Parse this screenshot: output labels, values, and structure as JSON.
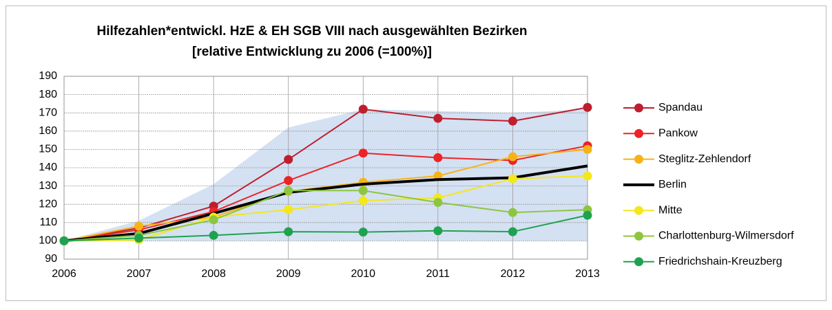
{
  "chart_data": {
    "type": "line",
    "title": [
      "Hilfezahlen*entwickl. HzE & EH SGB VIII nach ausgewählten Bezirken",
      "[relative Entwicklung zu 2006 (=100%)]"
    ],
    "categories": [
      "2006",
      "2007",
      "2008",
      "2009",
      "2010",
      "2011",
      "2012",
      "2013"
    ],
    "ylim": [
      90,
      190
    ],
    "yticks": [
      90,
      100,
      110,
      120,
      130,
      140,
      150,
      160,
      170,
      180,
      190
    ],
    "grid": true,
    "legend": "right",
    "range": {
      "color": "#c6d7ee",
      "upper": [
        100,
        111,
        131,
        162,
        172,
        171,
        170,
        172
      ],
      "lower": [
        100,
        100,
        100,
        100,
        100,
        100,
        100,
        100
      ]
    },
    "series": [
      {
        "name": "Spandau",
        "color": "#be1e2d",
        "values": [
          100,
          107,
          119,
          144.5,
          172,
          167,
          165.5,
          173
        ]
      },
      {
        "name": "Pankow",
        "color": "#ec2327",
        "values": [
          100,
          106,
          116,
          133,
          148,
          145.5,
          144,
          152
        ]
      },
      {
        "name": "Steglitz-Zehlendorf",
        "color": "#f7b316",
        "values": [
          100,
          108,
          113,
          127,
          132,
          135.5,
          146,
          150
        ]
      },
      {
        "name": "Berlin",
        "color": "#000000",
        "values": [
          100,
          104,
          115,
          126.5,
          131,
          133.5,
          134.5,
          141
        ]
      },
      {
        "name": "Mitte",
        "color": "#f4e71b",
        "values": [
          100,
          100.5,
          113,
          117,
          122,
          123.5,
          134,
          135.5
        ]
      },
      {
        "name": "Charlottenburg-Wilmersdorf",
        "color": "#8cc63f",
        "values": [
          100,
          103,
          111.5,
          127.5,
          127.5,
          121,
          115.5,
          117
        ]
      },
      {
        "name": "Friedrichshain-Kreuzberg",
        "color": "#1fa24f",
        "values": [
          100,
          101.5,
          103,
          105,
          104.8,
          105.5,
          105,
          114
        ]
      }
    ]
  }
}
